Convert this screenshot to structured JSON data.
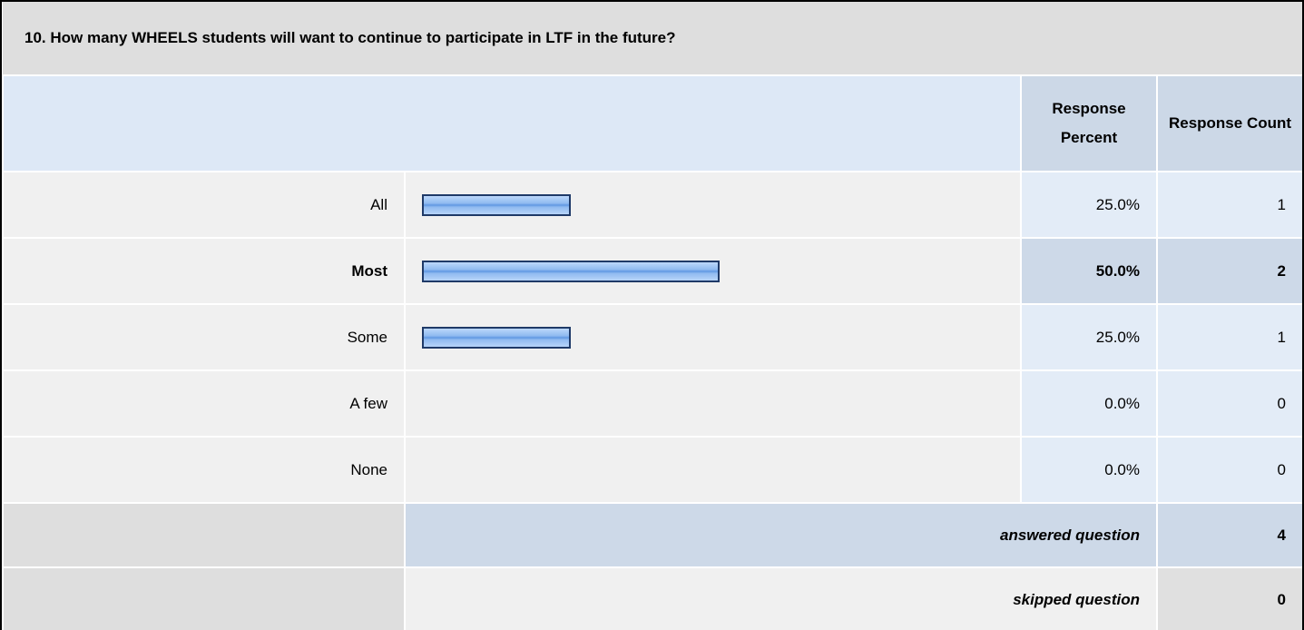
{
  "question": {
    "title": "10. How many WHEELS students will want to continue to participate in LTF in the future?"
  },
  "table": {
    "headers": {
      "percent": "Response Percent",
      "count": "Response Count"
    },
    "scale_max": 100,
    "rows": [
      {
        "label": "All",
        "percent": 25,
        "percent_label": "25.0%",
        "count": 1
      },
      {
        "label": "Most",
        "percent": 50,
        "percent_label": "50.0%",
        "count": 2,
        "highlight": true
      },
      {
        "label": "Some",
        "percent": 25,
        "percent_label": "25.0%",
        "count": 1
      },
      {
        "label": "A few",
        "percent": 0,
        "percent_label": "0.0%",
        "count": 0
      },
      {
        "label": "None",
        "percent": 0,
        "percent_label": "0.0%",
        "count": 0
      }
    ],
    "answered": {
      "label": "answered question",
      "count": 4
    },
    "skipped": {
      "label": "skipped question",
      "count": 0
    }
  }
}
